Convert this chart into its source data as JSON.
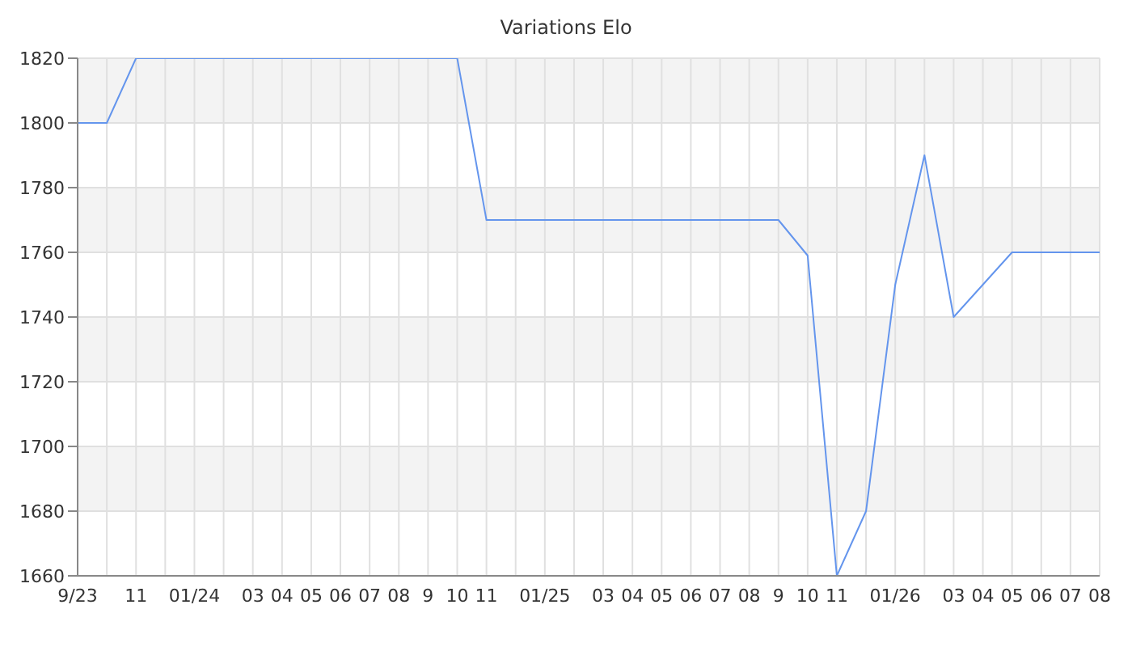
{
  "chart_data": {
    "type": "line",
    "title": "Variations Elo",
    "categories": [
      "9/23",
      null,
      "11",
      null,
      "01/24",
      null,
      "03",
      "04",
      "05",
      "06",
      "07",
      "08",
      "9",
      "10",
      "11",
      null,
      "01/25",
      null,
      "03",
      "04",
      "05",
      "06",
      "07",
      "08",
      "9",
      "10",
      "11",
      null,
      "01/26",
      null,
      "03",
      "04",
      "05",
      "06",
      "07",
      "08"
    ],
    "series": [
      {
        "color": "#6495ed",
        "values": [
          1800,
          1800,
          1820,
          1820,
          1820,
          1820,
          1820,
          1820,
          1820,
          1820,
          1820,
          1820,
          1820,
          1820,
          1770,
          1770,
          1770,
          1770,
          1770,
          1770,
          1770,
          1770,
          1770,
          1770,
          1770,
          1759,
          1660,
          1680,
          1750,
          1790,
          1740,
          1750,
          1760,
          1760,
          1760,
          1760
        ]
      }
    ],
    "ylim": [
      1660,
      1820
    ],
    "yticks": [
      1660,
      1680,
      1700,
      1720,
      1740,
      1760,
      1780,
      1800,
      1820
    ],
    "grid": true,
    "legend": false,
    "marker": "none",
    "line_style": "solid"
  }
}
